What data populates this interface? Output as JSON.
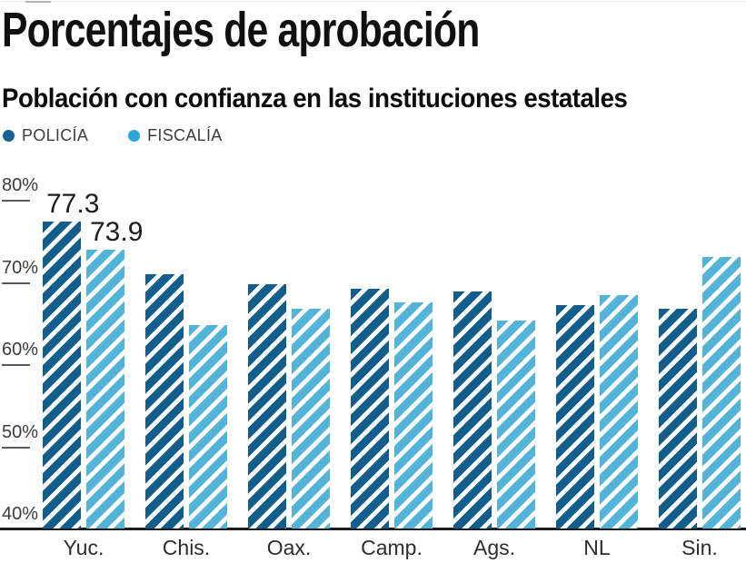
{
  "header": {
    "title": "Porcentajes de aprobación",
    "subtitle": "Población con confianza en las instituciones estatales"
  },
  "legend": {
    "items": [
      {
        "label": "POLICÍA",
        "color": "#16639a"
      },
      {
        "label": "FISCALÍA",
        "color": "#2aa6da"
      }
    ]
  },
  "chart_data": {
    "type": "bar",
    "title": "Porcentajes de aprobación",
    "subtitle": "Población con confianza en las instituciones estatales",
    "categories": [
      "Yuc.",
      "Chis.",
      "Oax.",
      "Camp.",
      "Ags.",
      "NL",
      "Sin."
    ],
    "series": [
      {
        "name": "POLICÍA",
        "color": "#115e8c",
        "values": [
          77.3,
          70.9,
          69.7,
          69.2,
          68.8,
          67.2,
          66.7
        ],
        "point_labels": [
          "77.3",
          "",
          "",
          "",
          "",
          "",
          ""
        ]
      },
      {
        "name": "FISCALÍA",
        "color": "#52b4d8",
        "values": [
          73.9,
          64.8,
          66.7,
          67.5,
          65.3,
          68.4,
          73.0
        ],
        "point_labels": [
          "73.9",
          "",
          "",
          "",
          "",
          "",
          ""
        ]
      }
    ],
    "xlabel": "",
    "ylabel": "",
    "ylim": [
      40,
      80
    ],
    "yticks": [
      {
        "label": "80%",
        "value": 80
      },
      {
        "label": "70%",
        "value": 70
      },
      {
        "label": "60%",
        "value": 60
      },
      {
        "label": "50%",
        "value": 50
      },
      {
        "label": "40%",
        "value": 40
      }
    ],
    "grid": false,
    "legend_position": "top-left",
    "bar_pattern": "diagonal-stripes"
  }
}
